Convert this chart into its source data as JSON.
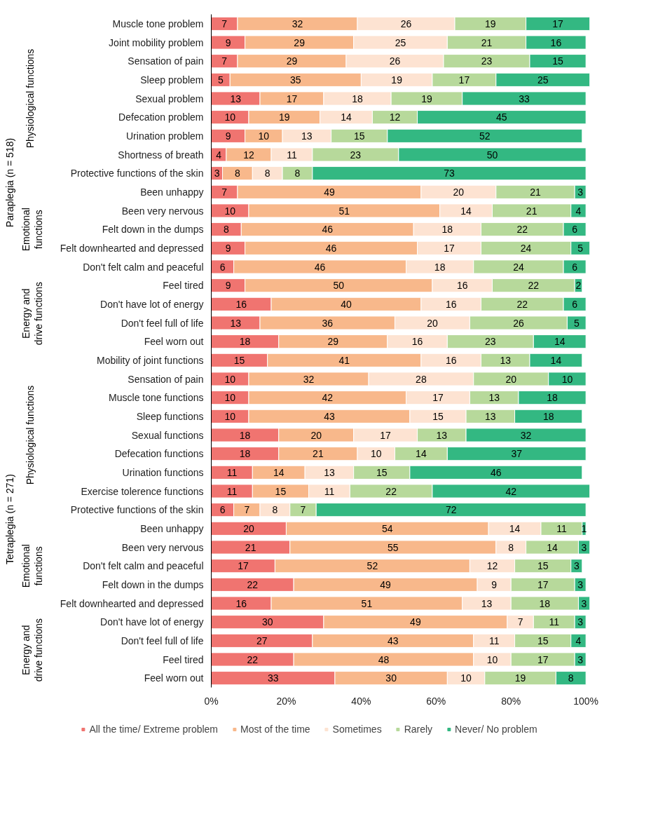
{
  "chart_data": {
    "type": "bar",
    "orientation": "horizontal",
    "stacked": true,
    "data_labels": true,
    "legend": "bottom",
    "grid": false,
    "annotations": [
      "Paraplegia (n = 518)",
      "Physiological functions",
      "Emotional functions",
      "Energy and drive functions",
      "Tetraplegia (n = 271)",
      "Physiological functions",
      "Emotional functions",
      "Energy and drive functions"
    ],
    "categories": [
      "Muscle tone problem",
      "Joint mobility problem",
      "Sensation of pain",
      "Sleep problem",
      "Sexual problem",
      "Defecation problem",
      "Urination problem",
      "Shortness of breath",
      "Protective functions of the skin",
      "Been unhappy",
      "Been very nervous",
      "Felt down in the dumps",
      "Felt downhearted and depressed",
      "Don't felt calm and peaceful",
      "Feel tired",
      "Don't have lot of energy",
      "Don't feel full of life",
      "Feel worn out",
      "Mobility of joint functions",
      "Sensation of pain",
      "Muscle tone functions",
      "Sleep functions",
      "Sexual functions",
      "Defecation functions",
      "Urination functions",
      "Exercise tolerence functions",
      "Protective functions of the skin",
      "Been unhappy",
      "Been very nervous",
      "Don't felt calm and peaceful",
      "Felt down in the dumps",
      "Felt downhearted and depressed",
      "Don't have lot of energy",
      "Don't feel full of life",
      "Feel tired",
      "Feel worn out"
    ],
    "xlim": [
      0,
      101
    ],
    "xticks": [
      {
        "value": 0,
        "label": "0%"
      },
      {
        "value": 20,
        "label": "20%"
      },
      {
        "value": 40,
        "label": "40%"
      },
      {
        "value": 60,
        "label": "60%"
      },
      {
        "value": 80,
        "label": "80%"
      },
      {
        "value": 100,
        "label": "100%"
      }
    ],
    "series": [
      {
        "name": "All the time/ Extreme problem",
        "color": "#f07470",
        "values": [
          7,
          9,
          7,
          5,
          13,
          10,
          9,
          4,
          3,
          7,
          10,
          8,
          9,
          6,
          9,
          16,
          13,
          18,
          15,
          10,
          10,
          10,
          18,
          18,
          11,
          11,
          6,
          20,
          21,
          17,
          22,
          16,
          30,
          27,
          22,
          33
        ]
      },
      {
        "name": "Most of the time",
        "color": "#f8b88b",
        "values": [
          32,
          29,
          29,
          35,
          17,
          19,
          10,
          12,
          8,
          49,
          51,
          46,
          46,
          46,
          50,
          40,
          36,
          29,
          41,
          32,
          42,
          43,
          20,
          21,
          14,
          15,
          7,
          54,
          55,
          52,
          49,
          51,
          49,
          43,
          48,
          30
        ]
      },
      {
        "name": "Sometimes",
        "color": "#fde3d2",
        "values": [
          26,
          25,
          26,
          19,
          18,
          14,
          13,
          11,
          8,
          20,
          14,
          18,
          17,
          18,
          16,
          16,
          20,
          16,
          16,
          28,
          17,
          15,
          17,
          10,
          13,
          11,
          8,
          14,
          8,
          12,
          9,
          13,
          7,
          11,
          10,
          10
        ]
      },
      {
        "name": "Rarely",
        "color": "#b7d99b",
        "values": [
          19,
          21,
          23,
          17,
          19,
          12,
          15,
          23,
          8,
          21,
          21,
          22,
          24,
          24,
          22,
          22,
          26,
          23,
          13,
          20,
          13,
          13,
          13,
          14,
          15,
          22,
          7,
          11,
          14,
          15,
          17,
          18,
          11,
          15,
          17,
          19
        ]
      },
      {
        "name": "Never/ No problem",
        "color": "#33b882",
        "values": [
          17,
          16,
          15,
          25,
          33,
          45,
          52,
          50,
          73,
          3,
          4,
          6,
          5,
          6,
          2,
          6,
          5,
          14,
          14,
          10,
          18,
          18,
          32,
          37,
          46,
          42,
          72,
          1,
          3,
          3,
          3,
          3,
          3,
          4,
          3,
          8
        ]
      }
    ]
  }
}
